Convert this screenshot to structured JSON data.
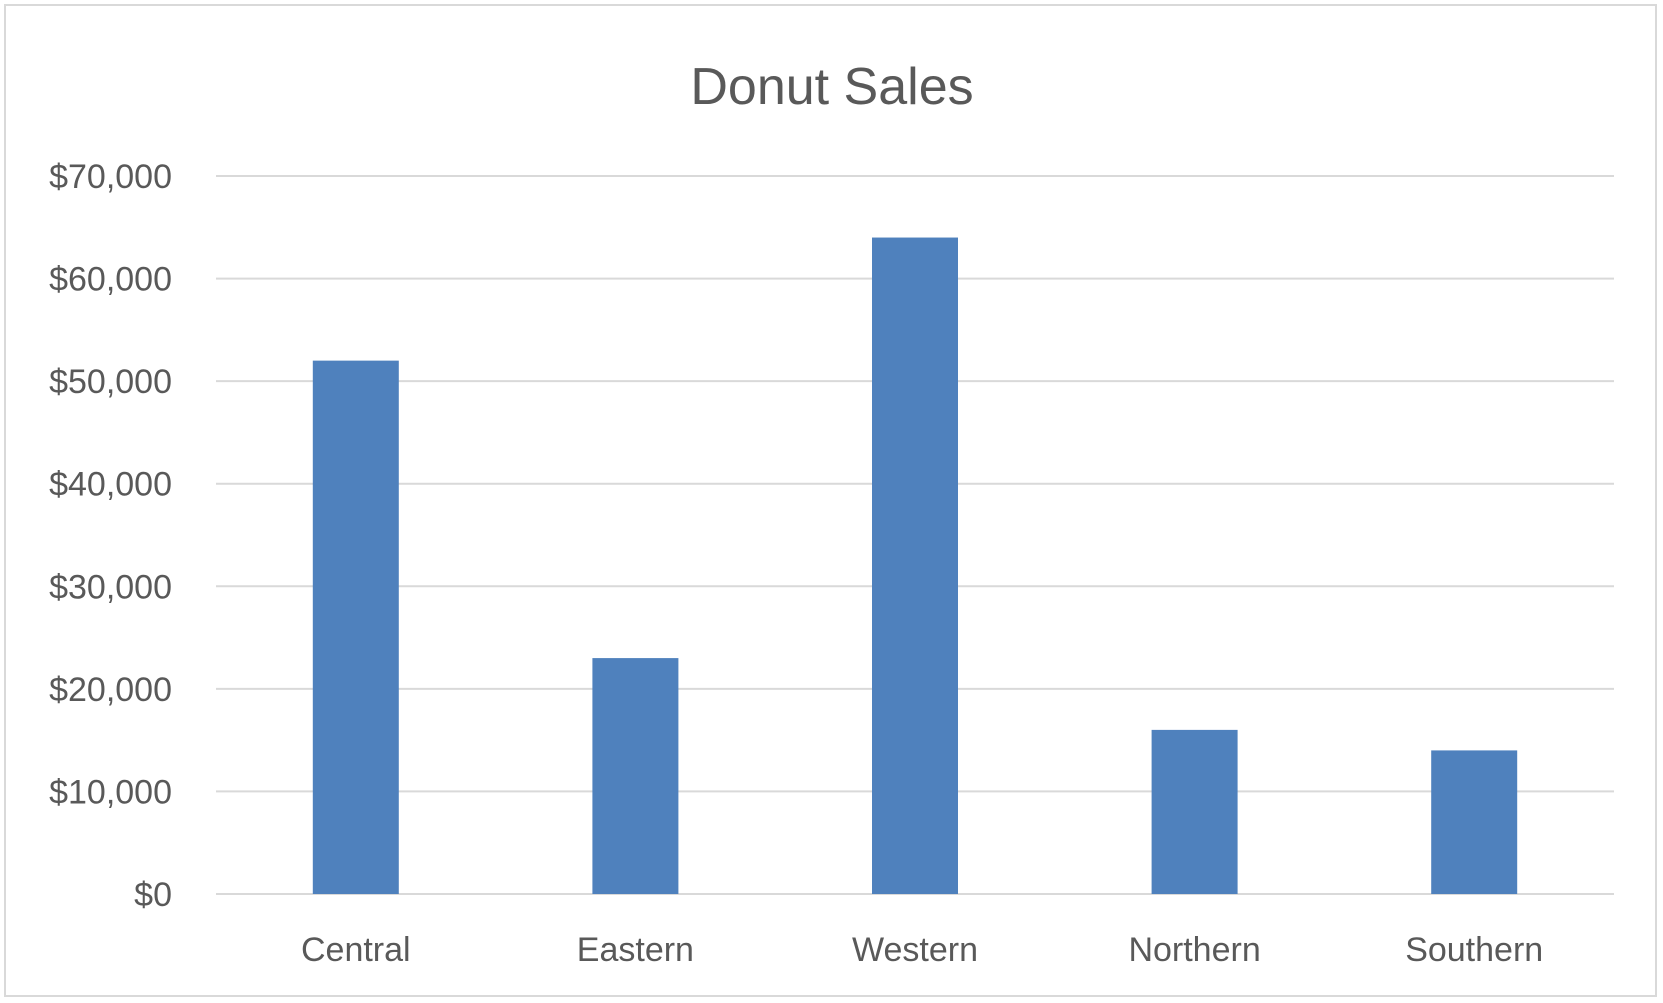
{
  "chart_data": {
    "type": "bar",
    "title": "Donut Sales",
    "xlabel": "",
    "ylabel": "",
    "categories": [
      "Central",
      "Eastern",
      "Western",
      "Northern",
      "Southern"
    ],
    "values": [
      52000,
      23000,
      64000,
      16000,
      14000
    ],
    "ylim": [
      0,
      70000
    ],
    "yticks": [
      0,
      10000,
      20000,
      30000,
      40000,
      50000,
      60000,
      70000
    ],
    "ytick_labels": [
      "$0",
      "$10,000",
      "$20,000",
      "$30,000",
      "$40,000",
      "$50,000",
      "$60,000",
      "$70,000"
    ],
    "grid": true,
    "legend": "none",
    "colors": {
      "bar": "#4f81bd",
      "grid": "#d9d9d9",
      "text": "#595959",
      "border": "#d9d9d9"
    }
  }
}
